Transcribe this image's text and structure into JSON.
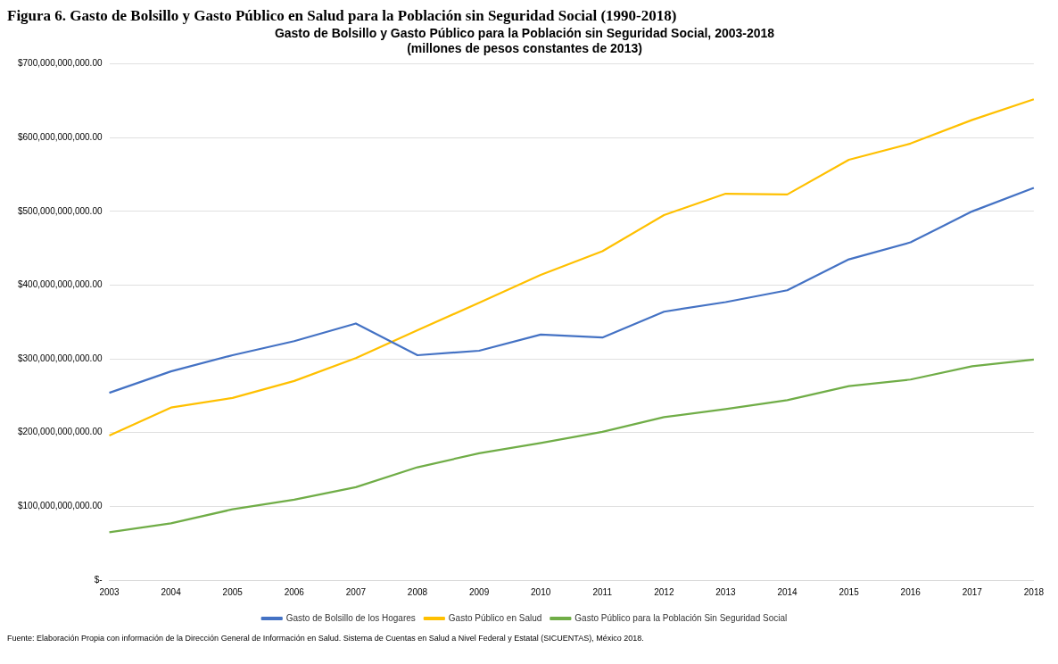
{
  "chart_data": {
    "type": "line",
    "title": "Figura 6. Gasto de Bolsillo y Gasto Público en Salud para la Población sin Seguridad Social (1990-2018)",
    "subtitle": "Gasto de Bolsillo y Gasto Público para la Población sin Seguridad Social, 2003-2018\n(millones de pesos constantes de 2013)",
    "categories": [
      "2003",
      "2004",
      "2005",
      "2006",
      "2007",
      "2008",
      "2009",
      "2010",
      "2011",
      "2012",
      "2013",
      "2014",
      "2015",
      "2016",
      "2017",
      "2018"
    ],
    "series": [
      {
        "name": "Gasto de Bolsillo de los Hogares",
        "color": "#4472c4",
        "values": [
          254000000000,
          283000000000,
          305000000000,
          324000000000,
          348000000000,
          305000000000,
          311000000000,
          333000000000,
          329000000000,
          364000000000,
          377000000000,
          393000000000,
          435000000000,
          458000000000,
          500000000000,
          532000000000
        ]
      },
      {
        "name": "Gasto Público en Salud",
        "color": "#ffc000",
        "values": [
          196000000000,
          234000000000,
          247000000000,
          270000000000,
          301000000000,
          339000000000,
          376000000000,
          414000000000,
          446000000000,
          495000000000,
          524000000000,
          523000000000,
          570000000000,
          592000000000,
          624000000000,
          652000000000
        ]
      },
      {
        "name": "Gasto Público para la Población Sin Seguridad Social",
        "color": "#70ad47",
        "values": [
          65000000000,
          77000000000,
          96000000000,
          109000000000,
          126000000000,
          153000000000,
          172000000000,
          186000000000,
          201000000000,
          221000000000,
          232000000000,
          244000000000,
          263000000000,
          272000000000,
          290000000000,
          299000000000
        ]
      }
    ],
    "ylim": [
      0,
      700000000000
    ],
    "yticks": [
      {
        "value": 0,
        "label": "$-"
      },
      {
        "value": 100000000000,
        "label": "$100,000,000,000.00"
      },
      {
        "value": 200000000000,
        "label": "$200,000,000,000.00"
      },
      {
        "value": 300000000000,
        "label": "$300,000,000,000.00"
      },
      {
        "value": 400000000000,
        "label": "$400,000,000,000.00"
      },
      {
        "value": 500000000000,
        "label": "$500,000,000,000.00"
      },
      {
        "value": 600000000000,
        "label": "$600,000,000,000.00"
      },
      {
        "value": 700000000000,
        "label": "$700,000,000,000.00"
      }
    ],
    "grid": "y",
    "legend": "bottom",
    "annotations": [
      "Fuente: Elaboración Propia con información de la Dirección General de Información en Salud. Sistema de Cuentas en Salud a Nivel Federal y Estatal (SICUENTAS), México 2018."
    ]
  }
}
